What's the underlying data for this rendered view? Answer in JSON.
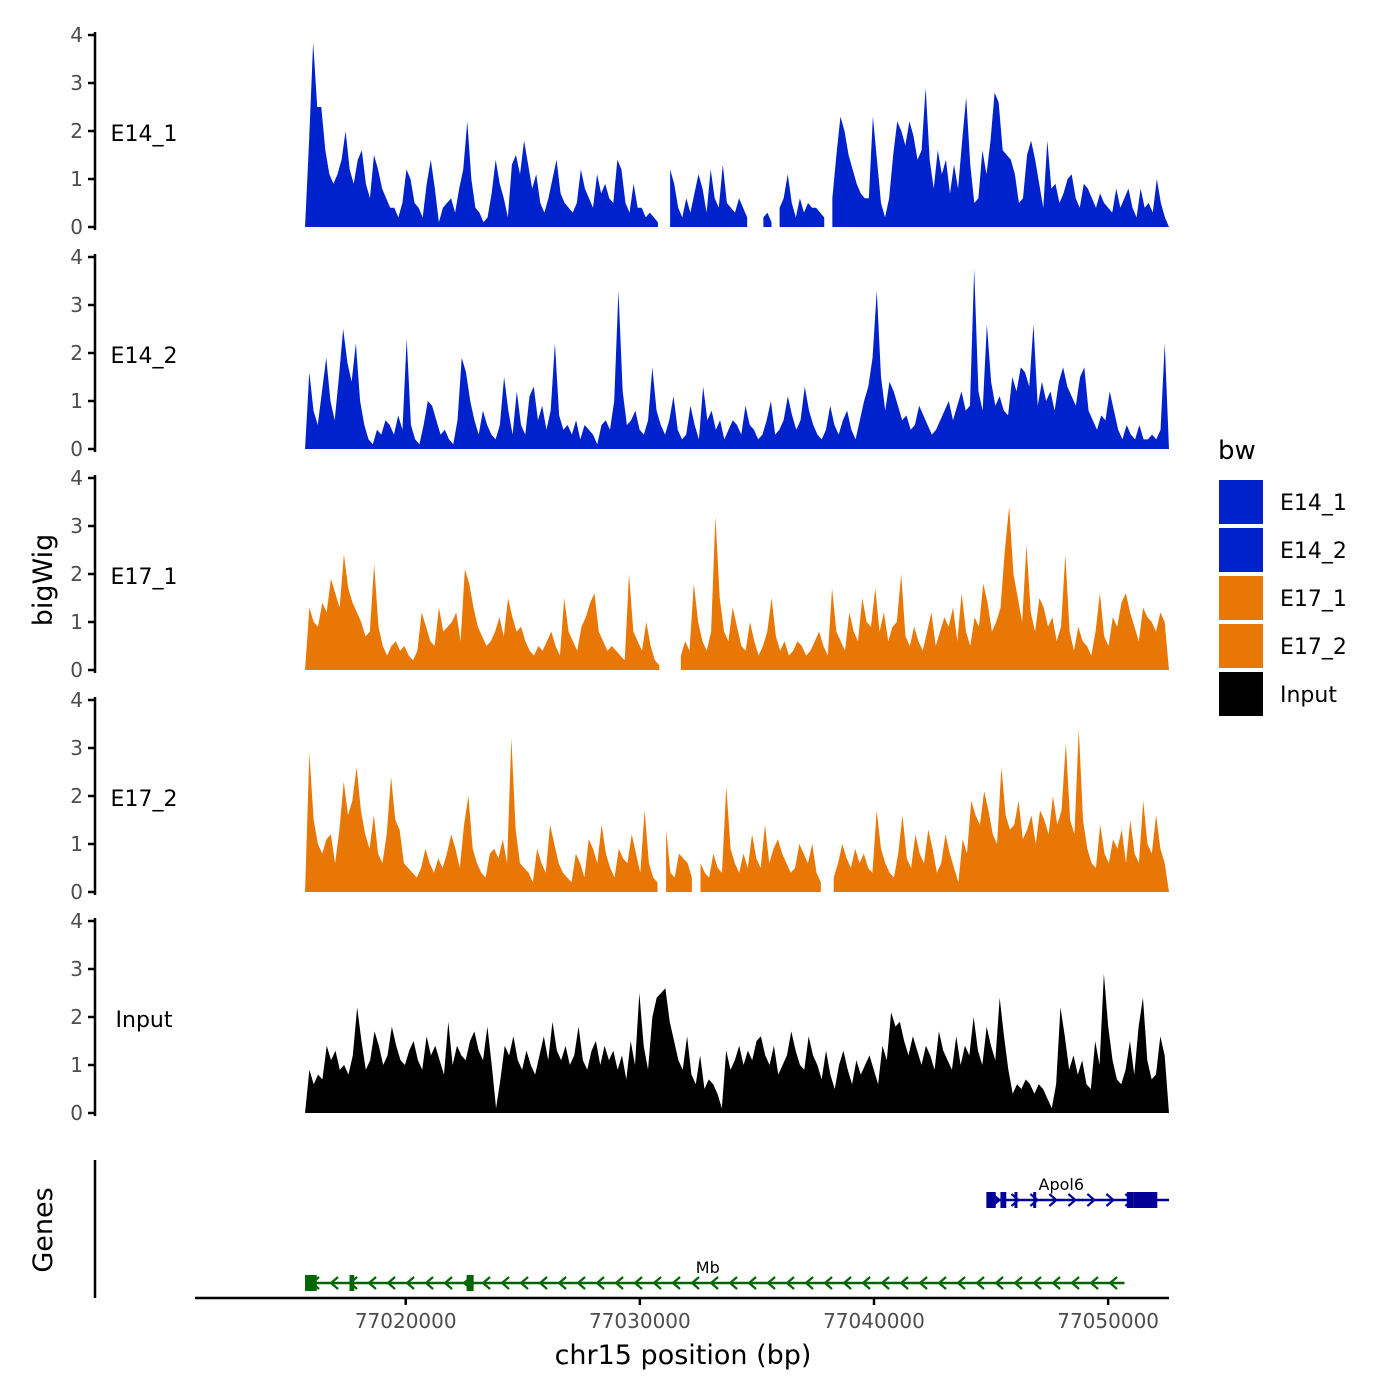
{
  "chart_data": {
    "type": "area",
    "title": "",
    "xlabel": "chr15 position (bp)",
    "ylabel": "bigWig",
    "genes_axis_label": "Genes",
    "xlim": [
      77011000,
      77052600
    ],
    "x_data_start": 77015700,
    "x_data_end": 77052600,
    "ylim": [
      0,
      4
    ],
    "y_ticks": [
      "0",
      "1",
      "2",
      "3",
      "4"
    ],
    "x_ticks": [
      {
        "value": 77020000,
        "label": "77020000"
      },
      {
        "value": 77030000,
        "label": "77030000"
      },
      {
        "value": 77040000,
        "label": "77040000"
      },
      {
        "value": 77050000,
        "label": "77050000"
      }
    ],
    "legend": {
      "title": "bw",
      "position": "right",
      "entries": [
        {
          "label": "E14_1",
          "color": "#0022CC"
        },
        {
          "label": "E14_2",
          "color": "#0022CC"
        },
        {
          "label": "E17_1",
          "color": "#E87705"
        },
        {
          "label": "E17_2",
          "color": "#E87705"
        },
        {
          "label": "Input",
          "color": "#000000"
        }
      ]
    },
    "series": [
      {
        "name": "E14_1",
        "color": "#0022CC",
        "values": [
          0.0,
          1.8,
          3.85,
          2.5,
          2.5,
          1.6,
          1.1,
          0.9,
          1.1,
          1.4,
          2.0,
          1.2,
          0.9,
          1.4,
          1.6,
          0.9,
          0.6,
          1.5,
          1.2,
          0.8,
          0.6,
          0.4,
          0.4,
          0.2,
          0.5,
          1.2,
          1.0,
          0.5,
          0.4,
          0.2,
          0.9,
          1.4,
          0.8,
          0.1,
          0.4,
          0.5,
          0.6,
          0.3,
          0.8,
          1.2,
          2.2,
          1.0,
          0.4,
          0.3,
          0.1,
          0.2,
          0.7,
          1.4,
          0.9,
          0.6,
          0.2,
          1.3,
          1.5,
          1.1,
          1.8,
          1.3,
          0.8,
          1.1,
          0.5,
          0.3,
          0.6,
          1.0,
          1.4,
          0.7,
          0.5,
          0.4,
          0.3,
          0.5,
          1.2,
          0.8,
          0.6,
          0.4,
          1.1,
          0.7,
          0.9,
          0.6,
          0.5,
          1.4,
          1.2,
          0.5,
          0.3,
          0.9,
          0.4,
          0.4,
          0.2,
          0.3,
          0.2,
          0.1,
          null,
          null,
          1.2,
          0.9,
          0.4,
          0.2,
          0.6,
          0.3,
          0.7,
          1.1,
          0.8,
          0.3,
          1.2,
          0.6,
          0.4,
          1.3,
          0.5,
          0.4,
          0.3,
          0.6,
          0.4,
          0.2,
          null,
          null,
          null,
          0.2,
          0.3,
          0.1,
          null,
          0.4,
          0.6,
          1.1,
          0.5,
          0.2,
          0.6,
          0.3,
          0.5,
          0.4,
          0.4,
          0.3,
          0.2,
          null,
          0.6,
          1.5,
          2.3,
          2.0,
          1.5,
          1.2,
          0.9,
          0.7,
          0.6,
          0.6,
          2.3,
          1.4,
          0.5,
          0.2,
          0.6,
          1.5,
          2.2,
          2.0,
          1.7,
          2.2,
          1.9,
          1.4,
          1.6,
          2.9,
          1.4,
          0.8,
          1.6,
          1.1,
          1.4,
          0.7,
          1.3,
          0.8,
          1.8,
          2.7,
          1.3,
          0.5,
          0.6,
          1.6,
          1.1,
          1.8,
          2.8,
          2.6,
          1.6,
          1.5,
          1.4,
          1.1,
          0.5,
          0.6,
          1.5,
          1.8,
          1.4,
          0.9,
          0.4,
          1.8,
          0.8,
          0.9,
          0.5,
          0.7,
          1.0,
          1.1,
          0.6,
          0.4,
          0.9,
          0.8,
          0.6,
          0.4,
          0.7,
          0.5,
          0.4,
          0.3,
          0.8,
          0.4,
          0.6,
          0.8,
          0.4,
          0.2,
          0.8,
          0.4,
          0.5,
          0.3,
          1.0,
          0.5,
          0.2,
          0.0
        ]
      },
      {
        "name": "E14_2",
        "color": "#0022CC",
        "values": [
          0.0,
          1.6,
          0.8,
          0.5,
          1.2,
          1.9,
          1.0,
          0.6,
          1.5,
          2.5,
          1.8,
          1.4,
          2.2,
          1.0,
          0.5,
          0.2,
          0.1,
          0.4,
          0.3,
          0.6,
          0.5,
          0.3,
          0.7,
          0.4,
          2.3,
          0.5,
          0.2,
          0.1,
          0.5,
          1.0,
          0.9,
          0.6,
          0.3,
          0.4,
          0.2,
          0.1,
          0.6,
          1.9,
          1.6,
          1.0,
          0.6,
          0.3,
          0.8,
          0.5,
          0.3,
          0.2,
          0.5,
          1.5,
          0.8,
          0.3,
          1.2,
          0.5,
          0.3,
          1.1,
          1.3,
          0.6,
          0.9,
          0.4,
          0.8,
          2.2,
          0.7,
          0.4,
          0.5,
          0.3,
          0.6,
          0.2,
          0.5,
          0.4,
          0.3,
          0.1,
          0.5,
          0.6,
          0.4,
          1.0,
          3.3,
          1.2,
          0.5,
          0.6,
          0.8,
          0.4,
          0.3,
          0.6,
          1.7,
          0.8,
          0.5,
          0.3,
          0.6,
          1.1,
          0.4,
          0.2,
          0.3,
          0.9,
          0.5,
          0.2,
          1.3,
          0.6,
          0.8,
          0.4,
          0.6,
          0.2,
          0.4,
          0.6,
          0.5,
          0.3,
          0.9,
          0.5,
          0.4,
          0.2,
          0.3,
          0.6,
          1.0,
          0.3,
          0.4,
          0.6,
          1.1,
          0.7,
          0.4,
          0.6,
          1.3,
          0.8,
          0.5,
          0.3,
          0.2,
          0.4,
          0.9,
          0.5,
          0.3,
          0.6,
          0.8,
          0.4,
          0.2,
          0.6,
          1.0,
          1.3,
          1.9,
          3.3,
          1.5,
          0.8,
          1.4,
          1.2,
          0.9,
          0.6,
          0.7,
          0.4,
          0.5,
          0.9,
          0.7,
          0.5,
          0.3,
          0.4,
          0.6,
          0.8,
          1.0,
          0.6,
          0.9,
          1.2,
          0.8,
          0.9,
          3.75,
          1.2,
          0.8,
          2.6,
          1.4,
          0.9,
          1.1,
          0.8,
          0.7,
          1.5,
          1.2,
          1.7,
          1.6,
          1.3,
          2.6,
          0.9,
          1.4,
          1.0,
          1.2,
          0.8,
          1.4,
          1.7,
          1.3,
          1.1,
          0.9,
          1.5,
          1.7,
          0.8,
          0.6,
          0.4,
          0.7,
          0.6,
          1.2,
          0.8,
          0.4,
          0.2,
          0.5,
          0.3,
          0.2,
          0.5,
          0.2,
          0.2,
          0.3,
          0.2,
          0.4,
          2.2,
          0.0
        ]
      },
      {
        "name": "E17_1",
        "color": "#E87705",
        "values": [
          0.0,
          1.3,
          1.0,
          0.9,
          1.4,
          1.2,
          1.9,
          1.6,
          1.3,
          2.4,
          1.7,
          1.4,
          1.2,
          1.0,
          0.7,
          0.8,
          2.2,
          0.9,
          0.5,
          0.3,
          0.5,
          0.6,
          0.4,
          0.5,
          0.3,
          0.2,
          0.4,
          1.2,
          0.9,
          0.6,
          0.5,
          1.3,
          0.8,
          0.9,
          1.0,
          1.2,
          0.6,
          2.1,
          1.8,
          1.3,
          0.9,
          0.7,
          0.5,
          0.6,
          0.8,
          1.1,
          0.7,
          1.5,
          1.1,
          0.8,
          0.9,
          0.6,
          0.4,
          0.3,
          0.5,
          0.4,
          0.6,
          0.8,
          0.5,
          0.3,
          1.5,
          0.8,
          0.6,
          0.4,
          0.9,
          1.1,
          1.4,
          1.6,
          0.8,
          0.6,
          0.4,
          0.5,
          0.4,
          0.3,
          0.2,
          2.0,
          0.8,
          0.6,
          0.4,
          1.0,
          0.5,
          0.2,
          0.1,
          null,
          null,
          0.15,
          null,
          0.3,
          0.6,
          0.4,
          1.8,
          1.0,
          0.6,
          0.4,
          0.8,
          3.2,
          1.5,
          0.8,
          0.6,
          1.3,
          0.9,
          0.5,
          0.4,
          1.0,
          0.6,
          0.3,
          0.5,
          0.8,
          1.5,
          0.7,
          0.4,
          0.6,
          0.3,
          0.4,
          0.6,
          0.5,
          0.3,
          0.4,
          0.6,
          0.8,
          0.5,
          0.3,
          1.7,
          0.8,
          0.6,
          0.4,
          1.2,
          0.8,
          0.6,
          1.5,
          1.0,
          0.9,
          1.7,
          0.8,
          1.2,
          0.6,
          0.9,
          1.0,
          2.0,
          0.7,
          0.5,
          0.9,
          0.6,
          0.4,
          0.8,
          1.2,
          0.5,
          0.8,
          1.1,
          0.9,
          1.3,
          0.6,
          1.6,
          0.8,
          0.5,
          1.1,
          0.9,
          1.8,
          1.4,
          0.8,
          1.0,
          1.3,
          2.5,
          3.4,
          2.0,
          1.5,
          1.0,
          2.6,
          1.2,
          0.8,
          1.5,
          1.3,
          0.9,
          1.1,
          0.6,
          0.9,
          2.4,
          0.8,
          0.4,
          0.9,
          0.6,
          0.5,
          0.3,
          0.8,
          1.6,
          0.7,
          0.5,
          1.1,
          0.9,
          1.4,
          1.6,
          1.2,
          0.9,
          0.6,
          1.3,
          1.1,
          1.0,
          0.8,
          1.2,
          1.0,
          0.0
        ]
      },
      {
        "name": "E17_2",
        "color": "#E87705",
        "values": [
          0.0,
          2.9,
          1.5,
          1.0,
          0.8,
          1.1,
          1.2,
          0.6,
          1.3,
          2.3,
          1.6,
          1.9,
          2.6,
          1.7,
          1.2,
          0.9,
          1.6,
          0.8,
          0.6,
          1.2,
          2.4,
          1.5,
          1.3,
          0.6,
          0.5,
          0.4,
          0.3,
          0.5,
          0.9,
          0.6,
          0.4,
          0.7,
          0.5,
          0.8,
          1.2,
          0.9,
          0.5,
          1.4,
          2.0,
          0.9,
          0.6,
          0.4,
          0.3,
          0.8,
          0.9,
          0.7,
          1.1,
          0.6,
          3.2,
          1.3,
          0.6,
          0.5,
          0.4,
          0.2,
          0.9,
          0.6,
          0.4,
          1.4,
          1.0,
          0.6,
          0.4,
          0.3,
          0.2,
          0.8,
          0.6,
          0.3,
          1.1,
          0.9,
          0.6,
          1.4,
          0.8,
          0.5,
          0.3,
          0.9,
          0.7,
          0.6,
          1.2,
          0.8,
          0.4,
          1.7,
          0.6,
          0.3,
          0.2,
          null,
          1.3,
          0.4,
          0.3,
          0.8,
          0.7,
          0.6,
          0.3,
          null,
          0.6,
          0.4,
          0.3,
          0.8,
          0.5,
          0.4,
          2.2,
          0.9,
          0.6,
          0.4,
          0.8,
          0.5,
          1.2,
          0.7,
          0.5,
          1.4,
          0.6,
          0.9,
          1.1,
          0.8,
          0.6,
          0.4,
          0.5,
          1.0,
          0.8,
          0.6,
          1.0,
          0.4,
          0.2,
          null,
          null,
          0.3,
          0.6,
          1.0,
          0.7,
          0.5,
          0.9,
          0.6,
          0.8,
          0.5,
          0.4,
          1.7,
          0.9,
          0.6,
          0.4,
          0.3,
          0.8,
          1.6,
          0.7,
          0.5,
          1.2,
          0.8,
          0.6,
          1.3,
          0.9,
          0.4,
          0.6,
          1.2,
          0.8,
          0.5,
          0.2,
          1.1,
          0.8,
          1.9,
          1.6,
          1.4,
          2.1,
          1.7,
          1.2,
          1.0,
          2.6,
          1.6,
          1.3,
          1.4,
          1.9,
          1.1,
          1.3,
          1.6,
          1.0,
          1.7,
          1.5,
          1.2,
          2.0,
          1.4,
          1.7,
          3.1,
          1.5,
          1.2,
          3.4,
          1.5,
          0.9,
          0.6,
          0.5,
          1.4,
          0.8,
          0.6,
          1.1,
          0.9,
          1.3,
          0.6,
          1.5,
          0.8,
          0.6,
          1.9,
          1.0,
          0.8,
          1.6,
          0.9,
          0.6,
          0.0
        ]
      },
      {
        "name": "Input",
        "color": "#000000",
        "values": [
          0.0,
          0.9,
          0.6,
          0.8,
          0.7,
          1.4,
          1.1,
          1.3,
          0.9,
          1.0,
          0.8,
          1.2,
          2.2,
          1.5,
          0.9,
          1.1,
          1.7,
          1.4,
          1.0,
          1.2,
          1.8,
          1.4,
          1.1,
          1.0,
          1.3,
          1.5,
          1.1,
          0.9,
          1.6,
          1.2,
          1.4,
          1.1,
          0.8,
          1.9,
          1.0,
          1.4,
          1.2,
          1.1,
          1.5,
          1.7,
          1.3,
          1.1,
          1.8,
          1.0,
          0.1,
          0.7,
          1.4,
          1.2,
          1.6,
          1.1,
          0.9,
          1.3,
          1.0,
          0.8,
          1.2,
          1.6,
          1.1,
          1.9,
          1.3,
          1.1,
          1.4,
          1.0,
          1.2,
          1.8,
          1.1,
          0.9,
          1.3,
          1.5,
          1.0,
          1.4,
          1.1,
          1.3,
          0.9,
          1.2,
          0.7,
          1.5,
          1.0,
          2.5,
          1.4,
          0.9,
          2.0,
          2.4,
          2.5,
          2.6,
          1.9,
          1.5,
          1.1,
          0.9,
          1.6,
          0.8,
          0.6,
          1.2,
          0.5,
          0.7,
          0.6,
          0.4,
          0.1,
          1.3,
          0.9,
          1.1,
          1.4,
          1.0,
          1.3,
          1.1,
          1.5,
          1.6,
          1.2,
          1.0,
          1.4,
          0.8,
          1.0,
          1.2,
          1.7,
          1.3,
          1.0,
          0.9,
          1.6,
          1.2,
          1.0,
          0.7,
          1.3,
          0.8,
          0.5,
          1.0,
          1.3,
          0.9,
          0.6,
          1.1,
          0.8,
          1.0,
          1.2,
          0.9,
          0.6,
          1.4,
          1.1,
          2.1,
          1.8,
          1.9,
          1.5,
          1.2,
          1.6,
          1.3,
          1.0,
          1.4,
          1.2,
          0.9,
          1.7,
          1.3,
          1.1,
          0.9,
          1.6,
          1.0,
          1.4,
          1.2,
          2.0,
          1.3,
          1.0,
          1.8,
          1.4,
          1.1,
          2.4,
          1.6,
          0.9,
          0.4,
          0.6,
          0.5,
          0.7,
          0.6,
          0.4,
          0.6,
          0.5,
          0.3,
          0.1,
          0.6,
          2.2,
          1.6,
          0.9,
          1.2,
          0.8,
          1.1,
          0.6,
          0.5,
          1.5,
          1.0,
          2.9,
          1.8,
          1.1,
          0.7,
          0.6,
          0.9,
          1.5,
          0.8,
          1.8,
          2.4,
          1.1,
          0.7,
          0.8,
          1.6,
          1.2,
          0.0
        ]
      }
    ],
    "genes": [
      {
        "name": "Apol6",
        "color": "#000099",
        "strand": "+",
        "start": 77044800,
        "end": 77052600,
        "label_pos": 77048000,
        "exons": [
          {
            "start": 77044800,
            "end": 77045200
          },
          {
            "start": 77045400,
            "end": 77045650
          },
          {
            "start": 77046000,
            "end": 77046100
          },
          {
            "start": 77046800,
            "end": 77046900
          },
          {
            "start": 77050800,
            "end": 77051100
          },
          {
            "start": 77051100,
            "end": 77052100
          }
        ]
      },
      {
        "name": "Mb",
        "color": "#006600",
        "strand": "-",
        "start": 77015700,
        "end": 77050700,
        "label_pos": 77032900,
        "exons": [
          {
            "start": 77015700,
            "end": 77016200
          },
          {
            "start": 77017600,
            "end": 77017800
          },
          {
            "start": 77022600,
            "end": 77022900
          }
        ]
      }
    ]
  }
}
